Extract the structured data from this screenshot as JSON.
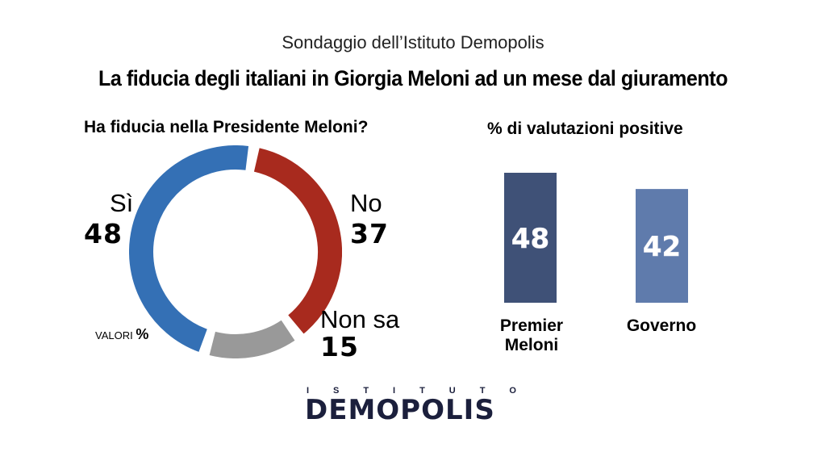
{
  "header": {
    "subtitle": "Sondaggio dell’Istituto Demopolis",
    "headline": "La fiducia degli italiani in Giorgia Meloni ad un mese dal giuramento"
  },
  "donut": {
    "title": "Ha fiducia nella Presidente Meloni?",
    "units": "VALORI",
    "units_symbol": "%"
  },
  "bars": {
    "title": "% di valutazioni positive"
  },
  "colors": {
    "si": "#3470b5",
    "no": "#a82a1e",
    "non_sa": "#999999",
    "premier": "#3f5177",
    "governo": "#5f7bac"
  },
  "chart_data": [
    {
      "type": "pie",
      "title": "Ha fiducia nella Presidente Meloni?",
      "categories": [
        "Sì",
        "No",
        "Non sa"
      ],
      "values": [
        48,
        37,
        15
      ],
      "unit": "%"
    },
    {
      "type": "bar",
      "title": "% di valutazioni positive",
      "categories": [
        "Premier Meloni",
        "Governo"
      ],
      "category_lines": [
        [
          "Premier",
          "Meloni"
        ],
        [
          "Governo"
        ]
      ],
      "values": [
        48,
        42
      ]
    }
  ],
  "logo": {
    "top_letters": [
      "I",
      "S",
      "T",
      "I",
      "T",
      "U",
      "T",
      "O"
    ],
    "name": "DEMOPOLIS"
  }
}
